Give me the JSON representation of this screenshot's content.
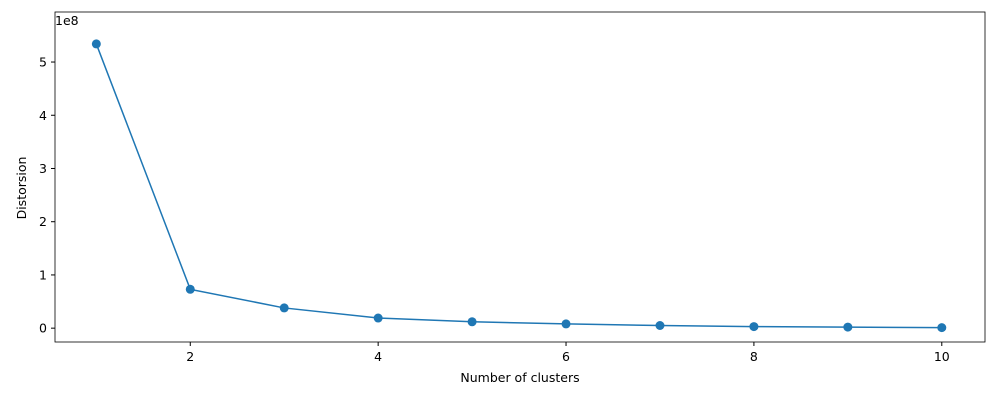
{
  "chart_data": {
    "type": "line",
    "x_label": "Number of clusters",
    "y_label": "Distorsion",
    "y_offset_label": "1e8",
    "x": [
      1,
      2,
      3,
      4,
      5,
      6,
      7,
      8,
      9,
      10
    ],
    "series": [
      {
        "color": "#1f77b4",
        "values": [
          5.34,
          0.73,
          0.38,
          0.19,
          0.12,
          0.08,
          0.05,
          0.03,
          0.02,
          0.01
        ]
      }
    ],
    "xlim": [
      0.56,
      10.46
    ],
    "xticks": [
      2,
      4,
      6,
      8,
      10
    ],
    "ylim": [
      -0.26,
      5.94
    ],
    "yticks": [
      0,
      1,
      2,
      3,
      4,
      5
    ],
    "grid": false
  }
}
